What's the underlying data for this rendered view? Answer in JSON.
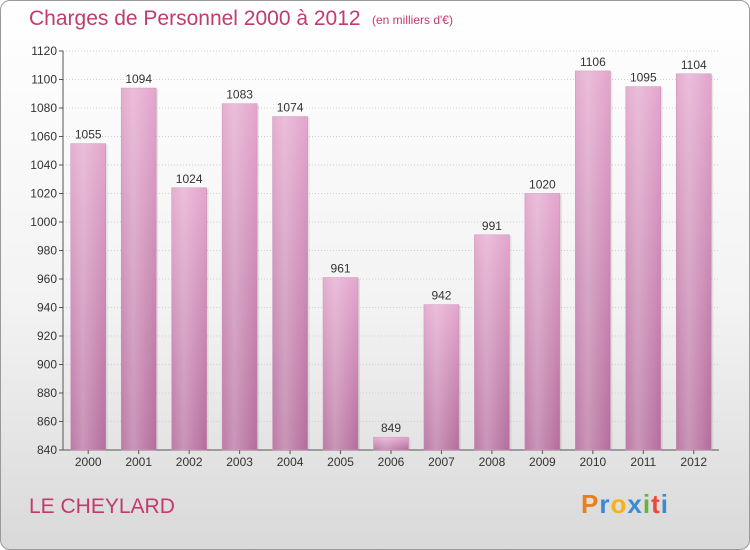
{
  "chart_data": {
    "type": "bar",
    "title": "Charges de Personnel 2000 à 2012",
    "subtitle": "(en milliers d'€)",
    "categories": [
      "2000",
      "2001",
      "2002",
      "2003",
      "2004",
      "2005",
      "2006",
      "2007",
      "2008",
      "2009",
      "2010",
      "2011",
      "2012"
    ],
    "values": [
      1055,
      1094,
      1024,
      1083,
      1074,
      961,
      849,
      942,
      991,
      1020,
      1106,
      1095,
      1104
    ],
    "ylim": [
      840,
      1120
    ],
    "yticks": [
      840,
      860,
      880,
      900,
      920,
      940,
      960,
      980,
      1000,
      1020,
      1040,
      1060,
      1080,
      1100,
      1120
    ],
    "grid": true,
    "bar_color": "#d88ab8"
  },
  "footer": {
    "place": "LE CHEYLARD",
    "logo_letters": [
      "P",
      "r",
      "o",
      "x",
      "i",
      "t",
      "i"
    ],
    "logo_colors": [
      "#e8801e",
      "#3a8ad4",
      "#f2b31b",
      "#3a8ad4",
      "#68b435",
      "#e84a3a",
      "#3a8ad4"
    ]
  }
}
